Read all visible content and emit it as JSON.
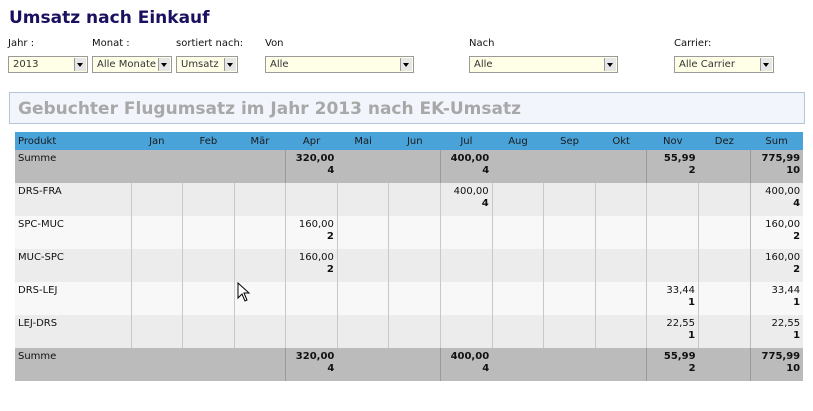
{
  "page": {
    "title": "Umsatz nach Einkauf"
  },
  "filters": {
    "jahr": {
      "label": "Jahr :",
      "value": "2013"
    },
    "monat": {
      "label": "Monat :",
      "value": "Alle Monate"
    },
    "sort": {
      "label": "sortiert nach:",
      "value": "Umsatz"
    },
    "von": {
      "label": "Von",
      "value": "Alle"
    },
    "nach": {
      "label": "Nach",
      "value": "Alle"
    },
    "carrier": {
      "label": "Carrier:",
      "value": "Alle Carrier"
    }
  },
  "section": {
    "title": "Gebuchter Flugumsatz im Jahr 2013 nach EK-Umsatz"
  },
  "table": {
    "headers": [
      "Produkt",
      "Jan",
      "Feb",
      "Mär",
      "Apr",
      "Mai",
      "Jun",
      "Jul",
      "Aug",
      "Sep",
      "Okt",
      "Nov",
      "Dez",
      "Sum"
    ],
    "rows": [
      {
        "name": "Summe",
        "type": "total",
        "cells": [
          null,
          null,
          null,
          {
            "v": "320,00",
            "c": "4"
          },
          null,
          null,
          {
            "v": "400,00",
            "c": "4"
          },
          null,
          null,
          null,
          {
            "v": "55,99",
            "c": "2"
          },
          null,
          {
            "v": "775,99",
            "c": "10"
          }
        ]
      },
      {
        "name": "DRS-FRA",
        "type": "even",
        "cells": [
          null,
          null,
          null,
          null,
          null,
          null,
          {
            "v": "400,00",
            "c": "4"
          },
          null,
          null,
          null,
          null,
          null,
          {
            "v": "400,00",
            "c": "4"
          }
        ]
      },
      {
        "name": "SPC-MUC",
        "type": "odd",
        "cells": [
          null,
          null,
          null,
          {
            "v": "160,00",
            "c": "2"
          },
          null,
          null,
          null,
          null,
          null,
          null,
          null,
          null,
          {
            "v": "160,00",
            "c": "2"
          }
        ]
      },
      {
        "name": "MUC-SPC",
        "type": "even",
        "cells": [
          null,
          null,
          null,
          {
            "v": "160,00",
            "c": "2"
          },
          null,
          null,
          null,
          null,
          null,
          null,
          null,
          null,
          {
            "v": "160,00",
            "c": "2"
          }
        ]
      },
      {
        "name": "DRS-LEJ",
        "type": "odd",
        "cells": [
          null,
          null,
          null,
          null,
          null,
          null,
          null,
          null,
          null,
          null,
          {
            "v": "33,44",
            "c": "1"
          },
          null,
          {
            "v": "33,44",
            "c": "1"
          }
        ]
      },
      {
        "name": "LEJ-DRS",
        "type": "even",
        "cells": [
          null,
          null,
          null,
          null,
          null,
          null,
          null,
          null,
          null,
          null,
          {
            "v": "22,55",
            "c": "1"
          },
          null,
          {
            "v": "22,55",
            "c": "1"
          }
        ]
      },
      {
        "name": "Summe",
        "type": "total",
        "cells": [
          null,
          null,
          null,
          {
            "v": "320,00",
            "c": "4"
          },
          null,
          null,
          {
            "v": "400,00",
            "c": "4"
          },
          null,
          null,
          null,
          {
            "v": "55,99",
            "c": "2"
          },
          null,
          {
            "v": "775,99",
            "c": "10"
          }
        ]
      }
    ]
  }
}
